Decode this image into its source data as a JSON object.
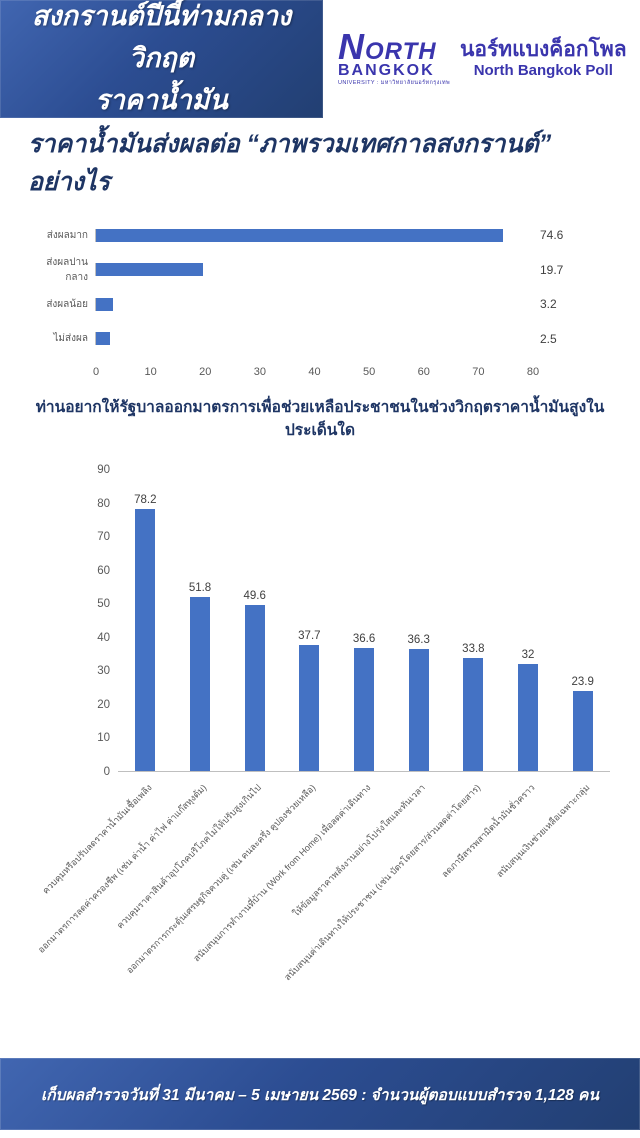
{
  "header": {
    "title_line1": "สงกรานต์ปีนี้ท่ามกลางวิกฤต",
    "title_line2": "ราคาน้ำมัน",
    "logo": {
      "name_top": "NORTH",
      "name_bottom": "BANGKOK",
      "tagline": "UNIVERSITY : มหาวิทยาลัยนอร์ทกรุงเทพ",
      "poll_name_thai": "นอร์ทแบงค็อกโพล",
      "poll_name_english": "North Bangkok Poll"
    }
  },
  "section1": {
    "title": "ราคาน้ำมันส่งผลต่อ “ภาพรวมเทศกาลสงกรานต์” อย่างไร"
  },
  "chart_data": [
    {
      "type": "bar",
      "orientation": "horizontal",
      "title": "ราคาน้ำมันส่งผลต่อ “ภาพรวมเทศกาลสงกรานต์” อย่างไร",
      "categories": [
        "ไม่ส่งผล",
        "ส่งผลน้อย",
        "ส่งผลปานกลาง",
        "ส่งผลมาก"
      ],
      "values": [
        2.5,
        3.2,
        19.7,
        74.6
      ],
      "xlim": [
        0,
        80
      ],
      "x_ticks": [
        0,
        10,
        20,
        30,
        40,
        50,
        60,
        70,
        80
      ],
      "bar_color": "#4472C4",
      "grid": false,
      "data_labels": true,
      "legend": "none"
    },
    {
      "type": "bar",
      "orientation": "vertical",
      "title": "ท่านอยากให้รัฐบาลออกมาตรการเพื่อช่วยเหลือประชาชนในช่วงวิกฤตราคาน้ำมันสูงในประเด็นใด",
      "categories": [
        "ควบคุมหรือปรับลดราคาน้ำมันเชื้อเพลิง",
        "ออกมาตรการลดค่าครองชีพ (เช่น ค่าน้ำ ค่าไฟ ค่าแก๊สหุงต้ม)",
        "ควบคุมราคาสินค้าอุปโภคบริโภคไม่ให้ปรับสูงเกินไป",
        "ออกมาตรการกระตุ้นเศรษฐกิจควบคู่ (เช่น คนละครึ่ง คูปองช่วยเหลือ)",
        "สนับสนุนการทำงานที่บ้าน (Work from Home) เพื่อลดค่าเดินทาง",
        "ให้ข้อมูลราคาพลังงานอย่างโปร่งใสและทันเวลา",
        "สนับสนุนค่าเดินทางให้ประชาชน (เช่น บัตรโดยสาร/ส่วนลดค่าโดยสาร)",
        "ลดภาษีสรรพสามิตน้ำมันชั่วคราว",
        "สนับสนุนเงินช่วยเหลือเฉพาะกลุ่ม"
      ],
      "values": [
        78.2,
        51.8,
        49.6,
        37.7,
        36.6,
        36.3,
        33.8,
        32,
        23.9
      ],
      "ylim": [
        0,
        90
      ],
      "y_ticks": [
        0,
        10,
        20,
        30,
        40,
        50,
        60,
        70,
        80,
        90
      ],
      "bar_color": "#4472C4",
      "grid": false,
      "data_labels": true,
      "legend": "none"
    }
  ],
  "footer": {
    "text": "เก็บผลสำรวจวันที่ 31 มีนาคม – 5 เมษายน 2569 : จำนวนผู้ตอบแบบสำรวจ 1,128 คน"
  },
  "colors": {
    "band_blue": "#2c4d92",
    "bar_blue": "#4472C4",
    "title_navy": "#1e3564",
    "axis_text": "#595959",
    "logo_indigo": "#3a35ad"
  }
}
